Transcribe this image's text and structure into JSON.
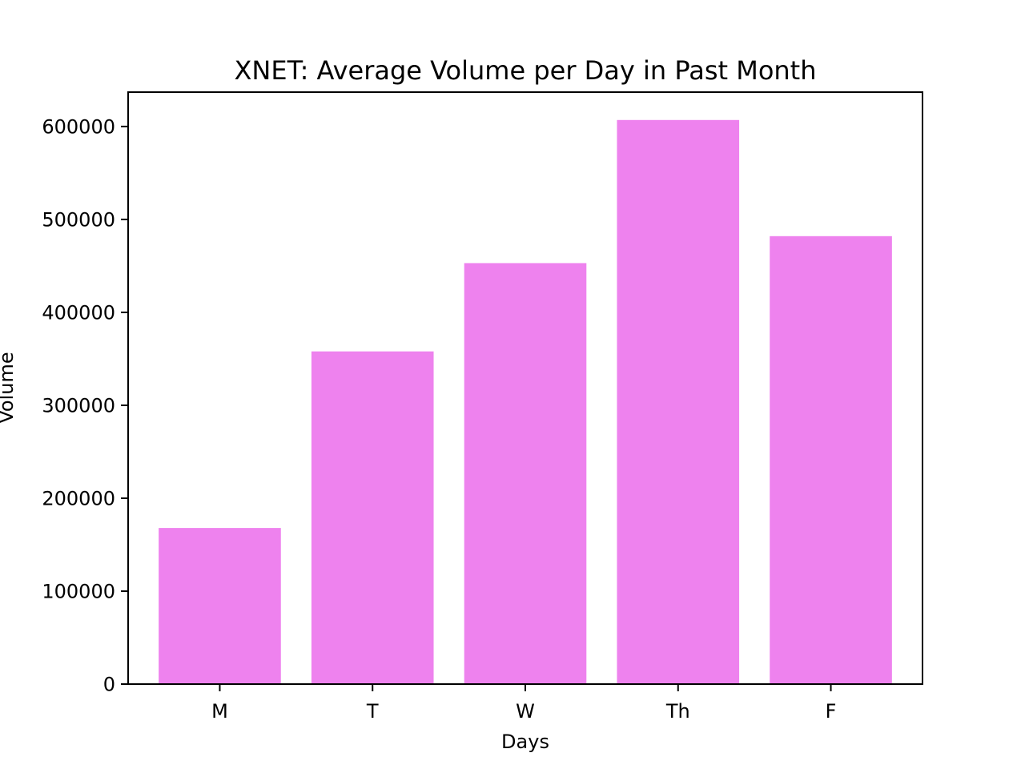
{
  "chart_data": {
    "type": "bar",
    "title": "XNET: Average Volume per Day in Past Month",
    "xlabel": "Days",
    "ylabel": "Volume",
    "categories": [
      "M",
      "T",
      "W",
      "Th",
      "F"
    ],
    "values": [
      168000,
      358000,
      453000,
      607000,
      482000
    ],
    "ylim": [
      0,
      637000
    ],
    "yticks": [
      0,
      100000,
      200000,
      300000,
      400000,
      500000,
      600000
    ],
    "ytick_labels": [
      "0",
      "100000",
      "200000",
      "300000",
      "400000",
      "500000",
      "600000"
    ],
    "grid": false,
    "legend": "none",
    "bar_color": "#ee82ee"
  }
}
